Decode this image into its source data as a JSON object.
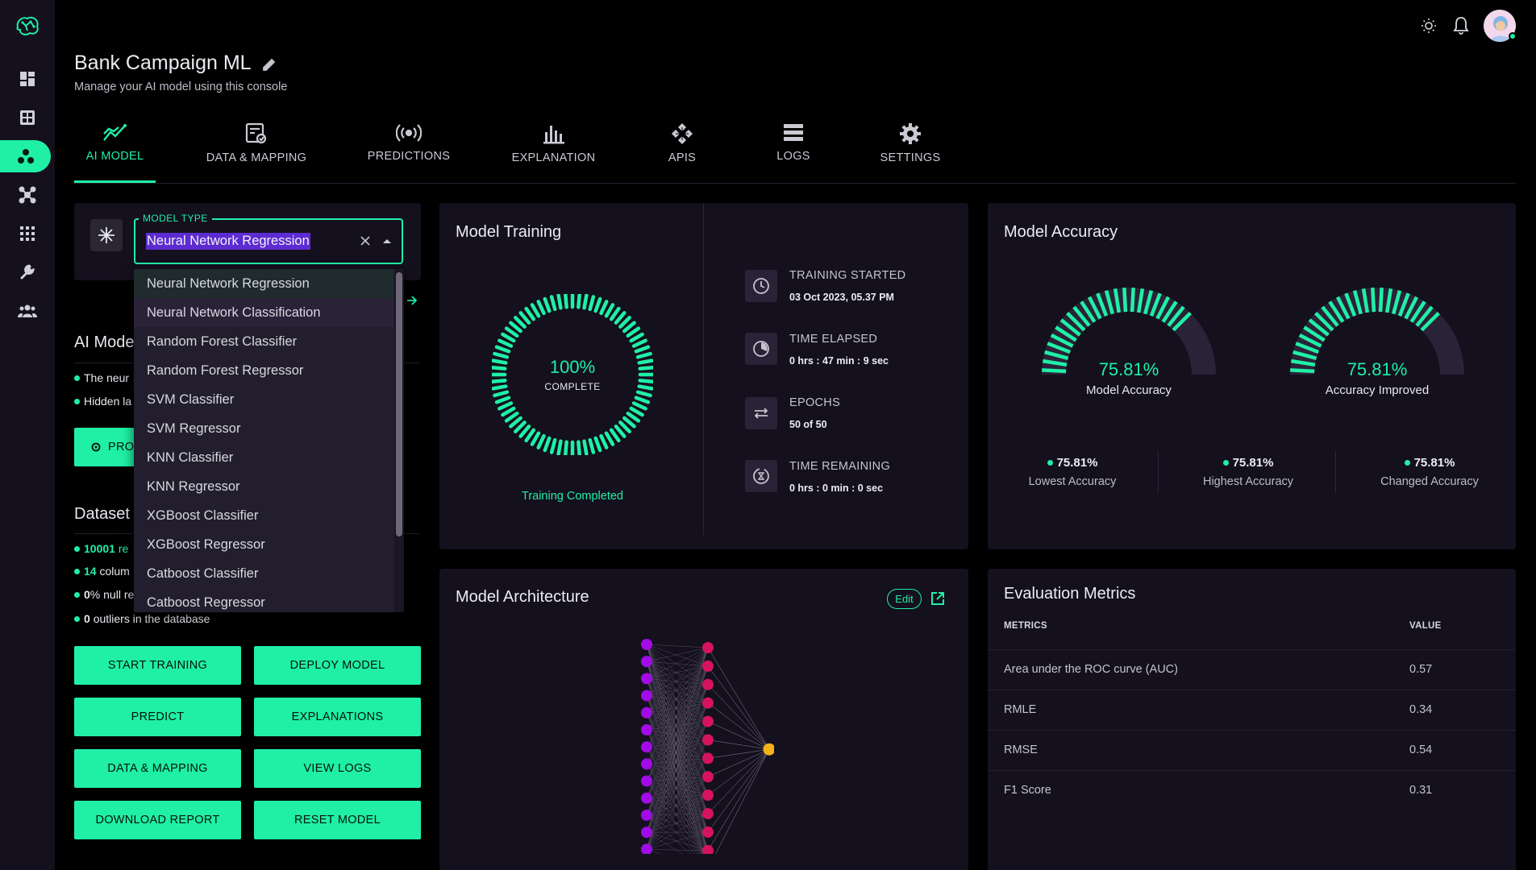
{
  "app": {
    "title": "Bank Campaign ML",
    "subtitle": "Manage your AI model using this console"
  },
  "colors": {
    "accent": "#1ff0a6",
    "panel": "#14101e",
    "purple_node": "#a20be6",
    "pink_node": "#d6145d",
    "output_node": "#f5b11a"
  },
  "sidebar": {
    "items": [
      {
        "icon": "dashboard-icon"
      },
      {
        "icon": "grid-icon"
      },
      {
        "icon": "model-icon",
        "active": true
      },
      {
        "icon": "network-icon"
      },
      {
        "icon": "apps-icon"
      },
      {
        "icon": "wrench-icon"
      },
      {
        "icon": "users-icon"
      }
    ]
  },
  "tabs": [
    {
      "label": "AI MODEL",
      "active": true,
      "icon": "chart-line-icon"
    },
    {
      "label": "DATA & MAPPING",
      "icon": "data-mapping-icon"
    },
    {
      "label": "PREDICTIONS",
      "icon": "broadcast-icon"
    },
    {
      "label": "EXPLANATION",
      "icon": "bar-explain-icon"
    },
    {
      "label": "APIS",
      "icon": "api-icon"
    },
    {
      "label": "LOGS",
      "icon": "logs-icon"
    },
    {
      "label": "SETTINGS",
      "icon": "gear-icon"
    }
  ],
  "model_type": {
    "label": "MODEL TYPE",
    "value": "Neural Network Regression",
    "options": [
      "Neural Network Regression",
      "Neural Network Classification",
      "Random Forest Classifier",
      "Random Forest Regressor",
      "SVM Classifier",
      "SVM Regressor",
      "KNN Classifier",
      "KNN Regressor",
      "XGBoost Classifier",
      "XGBoost Regressor",
      "Catboost Classifier",
      "Catboost Regressor"
    ]
  },
  "ai_model": {
    "heading": "AI Mode",
    "line1": "The neur",
    "line2": "Hidden la",
    "process_button": "PRO"
  },
  "dataset": {
    "heading": "Dataset",
    "records_num": "10001",
    "records_text": "re",
    "columns_num": "14",
    "columns_text": "colum",
    "null_num": "0",
    "null_text": "% null re",
    "outliers_num": "0",
    "outliers_text": "outliers in the database"
  },
  "actions": {
    "start_training": "START TRAINING",
    "deploy_model": "DEPLOY MODEL",
    "predict": "PREDICT",
    "explanations": "EXPLANATIONS",
    "data_mapping": "DATA & MAPPING",
    "view_logs": "VIEW LOGS",
    "download_report": "DOWNLOAD REPORT",
    "reset_model": "RESET MODEL"
  },
  "training": {
    "title": "Model Training",
    "percent": "100%",
    "percent_value": 100,
    "complete_label": "COMPLETE",
    "status": "Training Completed",
    "started_label": "TRAINING STARTED",
    "started_value": "03 Oct 2023, 05.37 PM",
    "elapsed_label": "TIME ELAPSED",
    "elapsed_value": "0 hrs : 47 min : 9 sec",
    "epochs_label": "EPOCHS",
    "epochs_value": "50 of 50",
    "remaining_label": "TIME REMAINING",
    "remaining_value": "0 hrs : 0 min : 0 sec"
  },
  "accuracy": {
    "title": "Model Accuracy",
    "gauge1_value": "75.81%",
    "gauge1_level": 0.7581,
    "gauge1_label": "Model Accuracy",
    "gauge2_value": "75.81%",
    "gauge2_level": 0.7581,
    "gauge2_label": "Accuracy Improved",
    "lowest_value": "75.81%",
    "lowest_label": "Lowest Accuracy",
    "highest_value": "75.81%",
    "highest_label": "Highest Accuracy",
    "changed_value": "75.81%",
    "changed_label": "Changed Accuracy"
  },
  "architecture": {
    "title": "Model Architecture",
    "edit_label": "Edit",
    "input_nodes": 13,
    "hidden_nodes": 13,
    "output_nodes": 1
  },
  "evaluation": {
    "title": "Evaluation Metrics",
    "col_metrics": "METRICS",
    "col_value": "VALUE",
    "rows": [
      {
        "metric": "Area under the ROC curve (AUC)",
        "value": "0.57"
      },
      {
        "metric": "RMLE",
        "value": "0.34"
      },
      {
        "metric": "RMSE",
        "value": "0.54"
      },
      {
        "metric": "F1 Score",
        "value": "0.31"
      }
    ]
  }
}
